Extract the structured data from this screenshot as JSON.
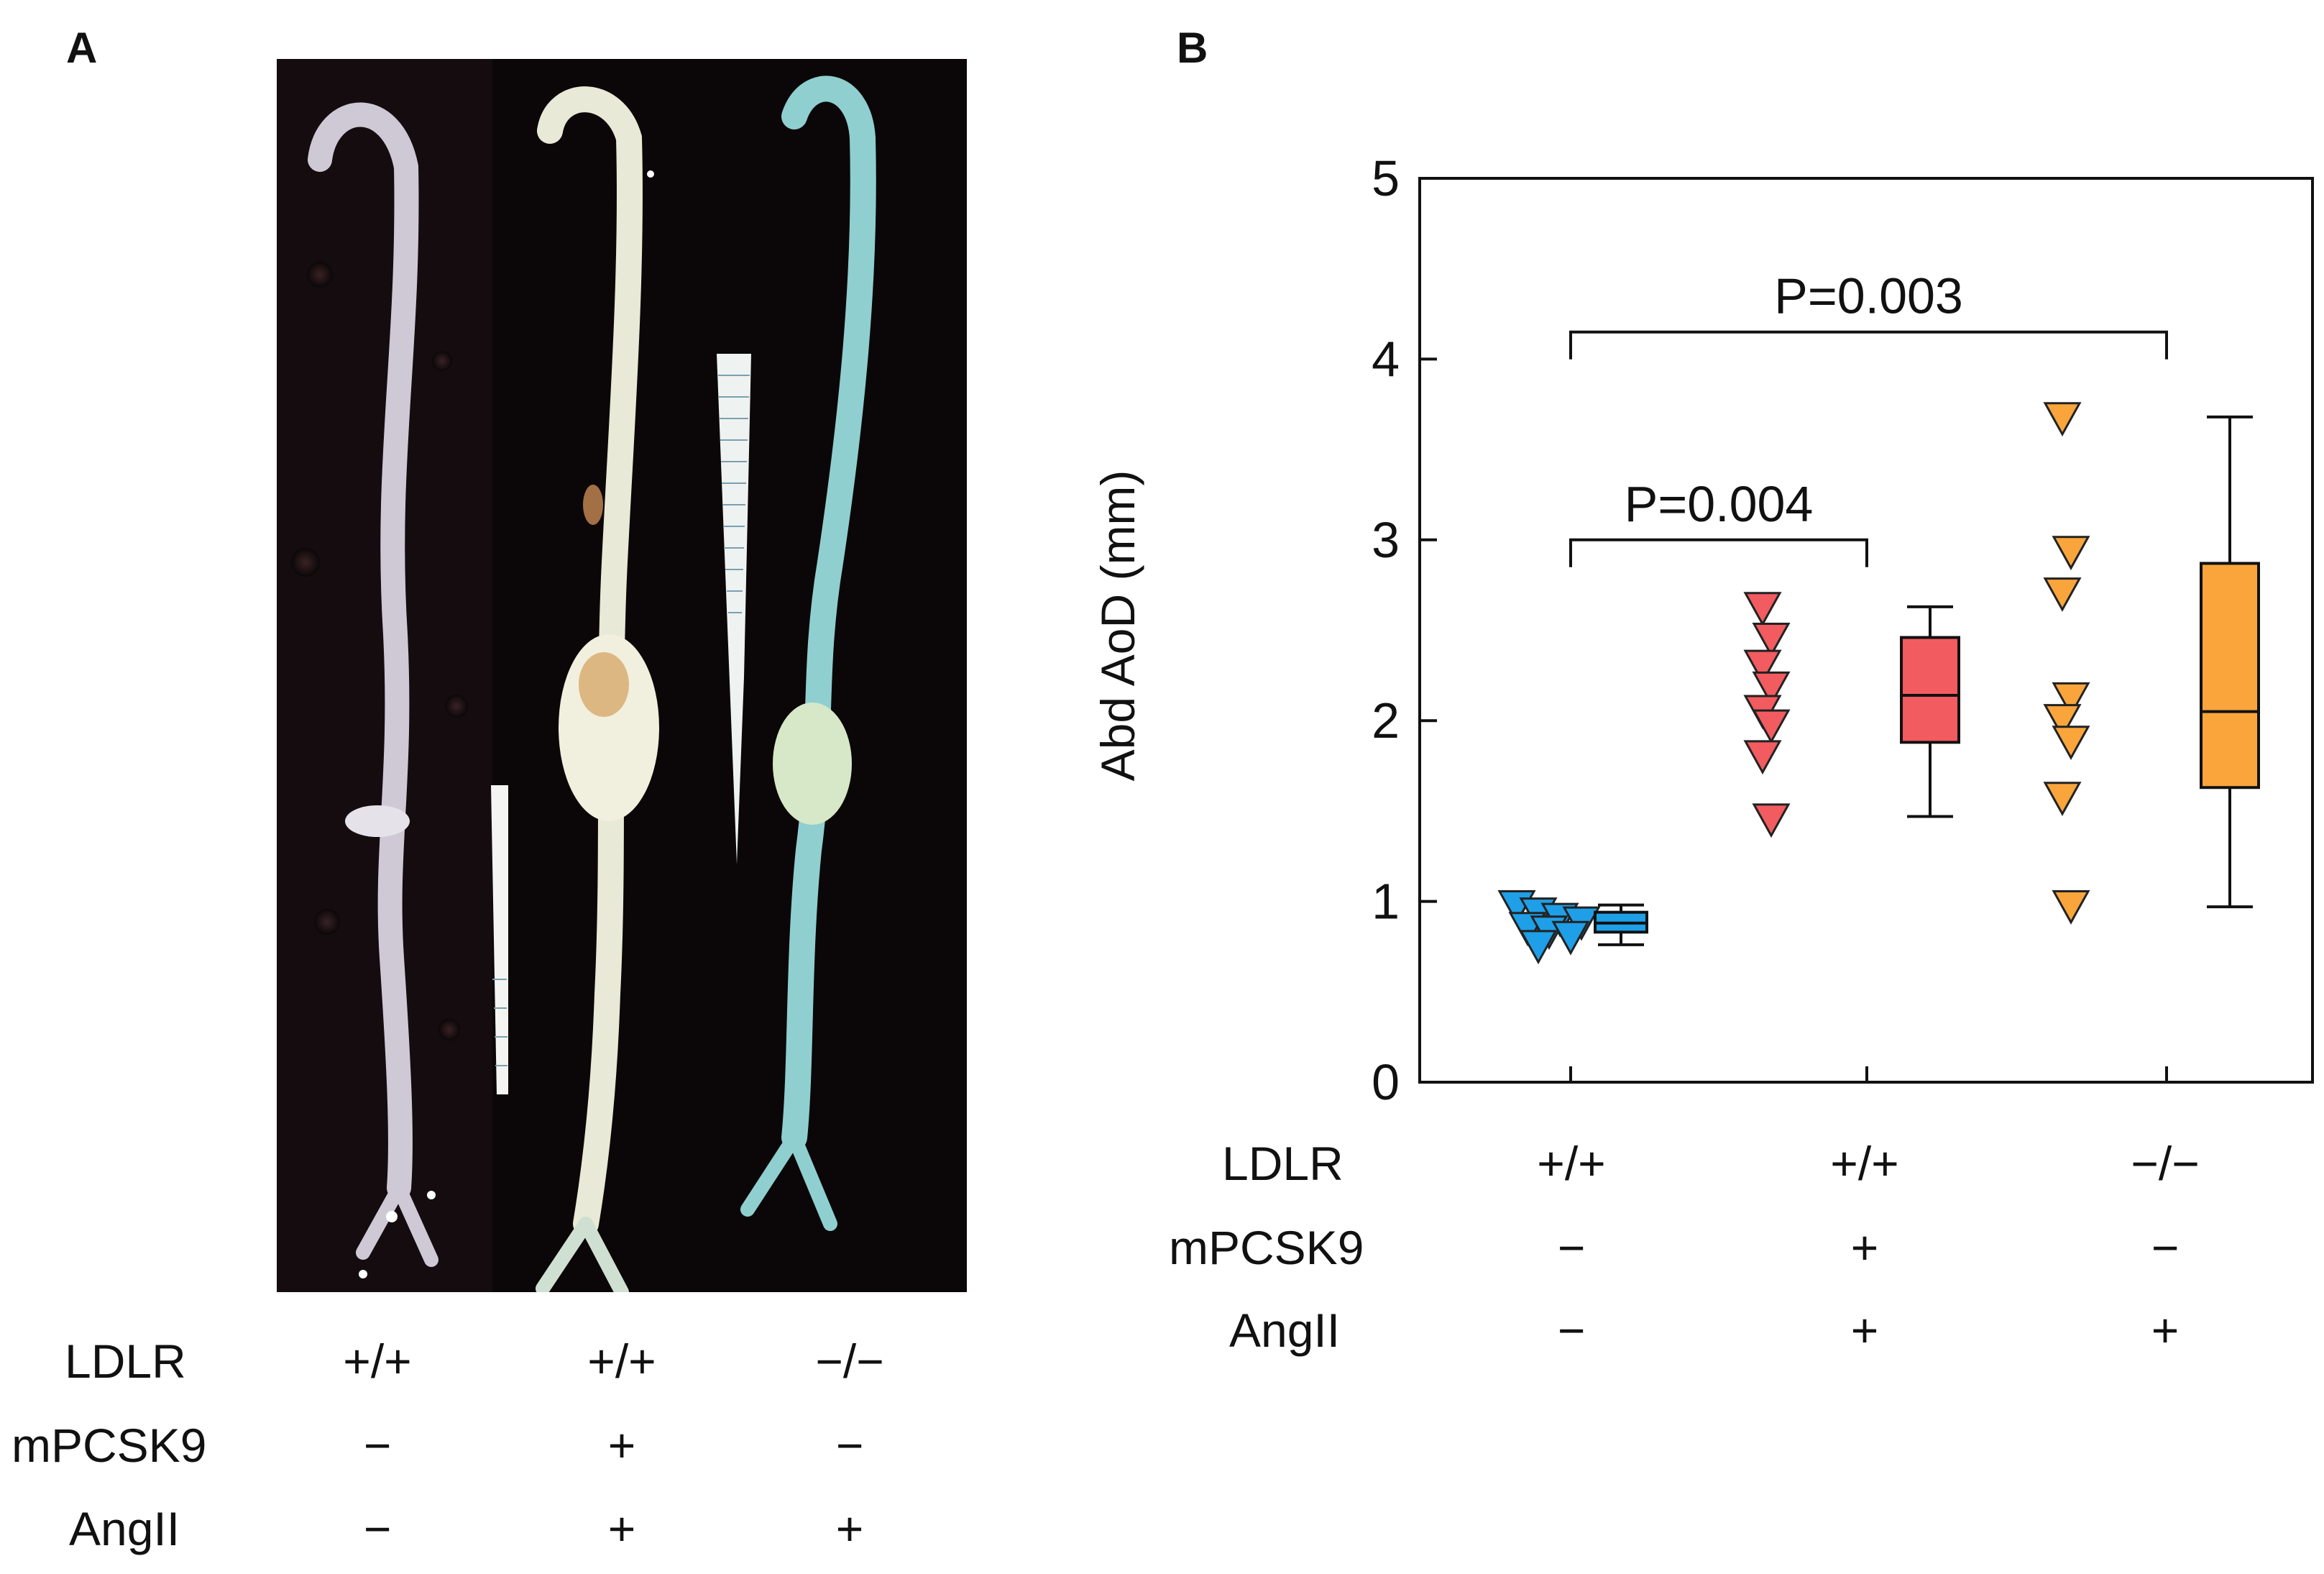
{
  "panels": {
    "a": "A",
    "b": "B"
  },
  "photo_panel": {
    "descriptor": "dissected-aortas-photograph",
    "specimen_colors": [
      "#d4cfd8",
      "#e9ead8",
      "#8fcfd0"
    ],
    "background_color": "#0b0708"
  },
  "rows": {
    "ldlr": "LDLR",
    "mpcsk9": "mPCSK9",
    "angii": "AngII"
  },
  "groups": [
    {
      "ldlr": "+/+",
      "mpcsk9": "−",
      "angii": "−",
      "color": "#1e9fe8"
    },
    {
      "ldlr": "+/+",
      "mpcsk9": "+",
      "angii": "+",
      "color": "#f25b5f"
    },
    {
      "ldlr": "−/−",
      "mpcsk9": "−",
      "angii": "+",
      "color": "#f9a53c"
    }
  ],
  "chart_data": {
    "type": "scatter",
    "title": "",
    "ylabel": "Abd AoD (mm)",
    "ylim": [
      0,
      5
    ],
    "yticks": [
      0,
      1,
      2,
      3,
      4,
      5
    ],
    "marker": "triangle-down",
    "grid": false,
    "series": [
      {
        "points": [
          0.97,
          0.93,
          0.9,
          0.88,
          0.85,
          0.83,
          0.8,
          0.75
        ],
        "box": {
          "min": 0.76,
          "q1": 0.83,
          "median": 0.88,
          "q3": 0.94,
          "max": 0.98
        }
      },
      {
        "points": [
          2.62,
          2.45,
          2.3,
          2.18,
          2.05,
          1.97,
          1.8,
          1.45
        ],
        "box": {
          "min": 1.47,
          "q1": 1.88,
          "median": 2.14,
          "q3": 2.46,
          "max": 2.63
        }
      },
      {
        "points": [
          3.67,
          2.93,
          2.7,
          2.12,
          2.0,
          1.88,
          1.57,
          0.97
        ],
        "box": {
          "min": 0.97,
          "q1": 1.63,
          "median": 2.05,
          "q3": 2.87,
          "max": 3.68
        }
      }
    ],
    "annotations": [
      {
        "text": "P=0.004",
        "from_group": 0,
        "to_group": 1,
        "y": 3.0
      },
      {
        "text": "P=0.003",
        "from_group": 0,
        "to_group": 2,
        "y": 4.15
      }
    ]
  }
}
